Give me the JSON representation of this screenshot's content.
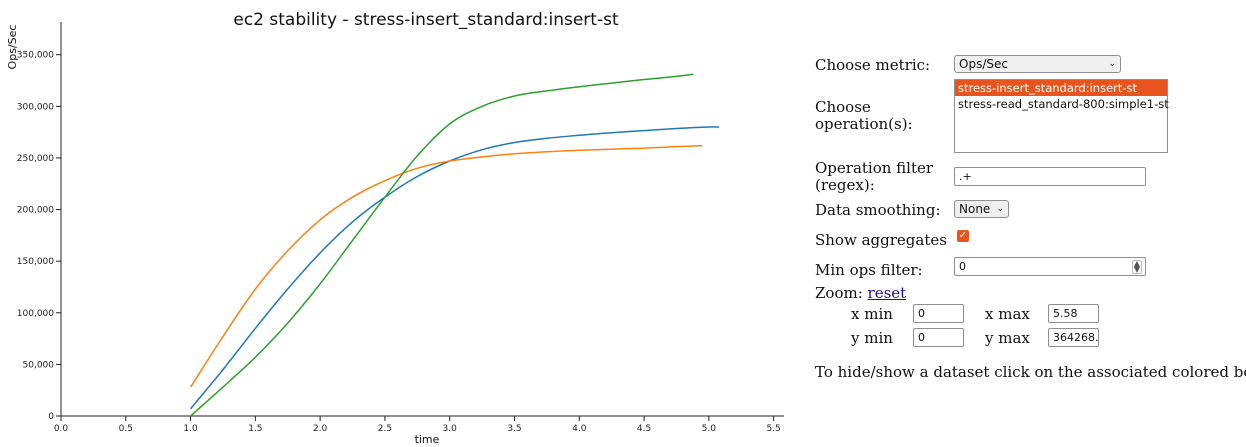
{
  "chart_data": {
    "type": "line",
    "title": "ec2 stability - stress-insert_standard:insert-st",
    "xlabel": "time",
    "ylabel": "Ops/Sec",
    "xlim": [
      0,
      5.58
    ],
    "ylim": [
      0,
      364268
    ],
    "x_ticks": [
      0,
      0.5,
      1,
      1.5,
      2,
      2.5,
      3,
      3.5,
      4,
      4.5,
      5,
      5.5
    ],
    "x_tick_labels": [
      "0.0",
      "0.5",
      "1.0",
      "1.5",
      "2.0",
      "2.5",
      "3.0",
      "3.5",
      "4.0",
      "4.5",
      "5.0",
      "5.5"
    ],
    "y_ticks": [
      0,
      50000,
      100000,
      150000,
      200000,
      250000,
      300000,
      350000
    ],
    "y_tick_labels": [
      "0",
      "50,000",
      "100,000",
      "150,000",
      "200,000",
      "250,000",
      "300,000",
      "350,000"
    ],
    "series": [
      {
        "color": "#1f77b4",
        "x": [
          1.0,
          1.25,
          1.5,
          1.75,
          2.0,
          2.25,
          2.5,
          2.75,
          3.0,
          3.25,
          3.5,
          3.75,
          4.0,
          4.25,
          4.5,
          4.75,
          5.0,
          5.08
        ],
        "y": [
          7000,
          45000,
          85000,
          123000,
          158000,
          188000,
          212000,
          232000,
          247000,
          258000,
          265000,
          269000,
          272000,
          274500,
          276500,
          278500,
          280000,
          280000
        ]
      },
      {
        "color": "#ff7f0e",
        "x": [
          1.0,
          1.25,
          1.5,
          1.75,
          2.0,
          2.25,
          2.5,
          2.75,
          3.0,
          3.25,
          3.5,
          3.75,
          4.0,
          4.25,
          4.5,
          4.75,
          4.95
        ],
        "y": [
          28000,
          77000,
          123000,
          160000,
          190000,
          212000,
          228000,
          240000,
          247000,
          251000,
          254000,
          256000,
          257500,
          258500,
          259500,
          261000,
          262000
        ]
      },
      {
        "color": "#2ca02c",
        "x": [
          1.0,
          1.25,
          1.5,
          1.75,
          2.0,
          2.25,
          2.5,
          2.75,
          3.0,
          3.25,
          3.5,
          3.75,
          4.0,
          4.25,
          4.5,
          4.75,
          4.88
        ],
        "y": [
          0,
          28000,
          57000,
          90000,
          128000,
          170000,
          212000,
          252000,
          283000,
          300000,
          310000,
          315000,
          319000,
          322500,
          326000,
          329000,
          331000
        ]
      }
    ]
  },
  "controls": {
    "metric_label": "Choose metric:",
    "metric_value": "Ops/Sec",
    "operations_label_line1": "Choose",
    "operations_label_line2": "operation(s):",
    "operations": [
      {
        "name": "stress-insert_standard:insert-st"
      },
      {
        "name": "stress-read_standard-800:simple1-st"
      }
    ],
    "filter_label_line1": "Operation filter",
    "filter_label_line2": "(regex):",
    "filter_value": ".+",
    "smoothing_label": "Data smoothing:",
    "smoothing_value": "None",
    "aggregates_label": "Show aggregates",
    "aggregates_check": "✓",
    "minops_label": "Min ops filter:",
    "minops_value": "0",
    "zoom_label": "Zoom:",
    "zoom_reset": "reset",
    "xmin_label": "x min",
    "xmin_value": "0",
    "xmax_label": "x max",
    "xmax_value": "5.58",
    "ymin_label": "y min",
    "ymin_value": "0",
    "ymax_label": "y max",
    "ymax_value": "364268.",
    "hint": "To hide/show a dataset click on the associated colored box"
  },
  "colors": {
    "accent": "#e8541e"
  }
}
